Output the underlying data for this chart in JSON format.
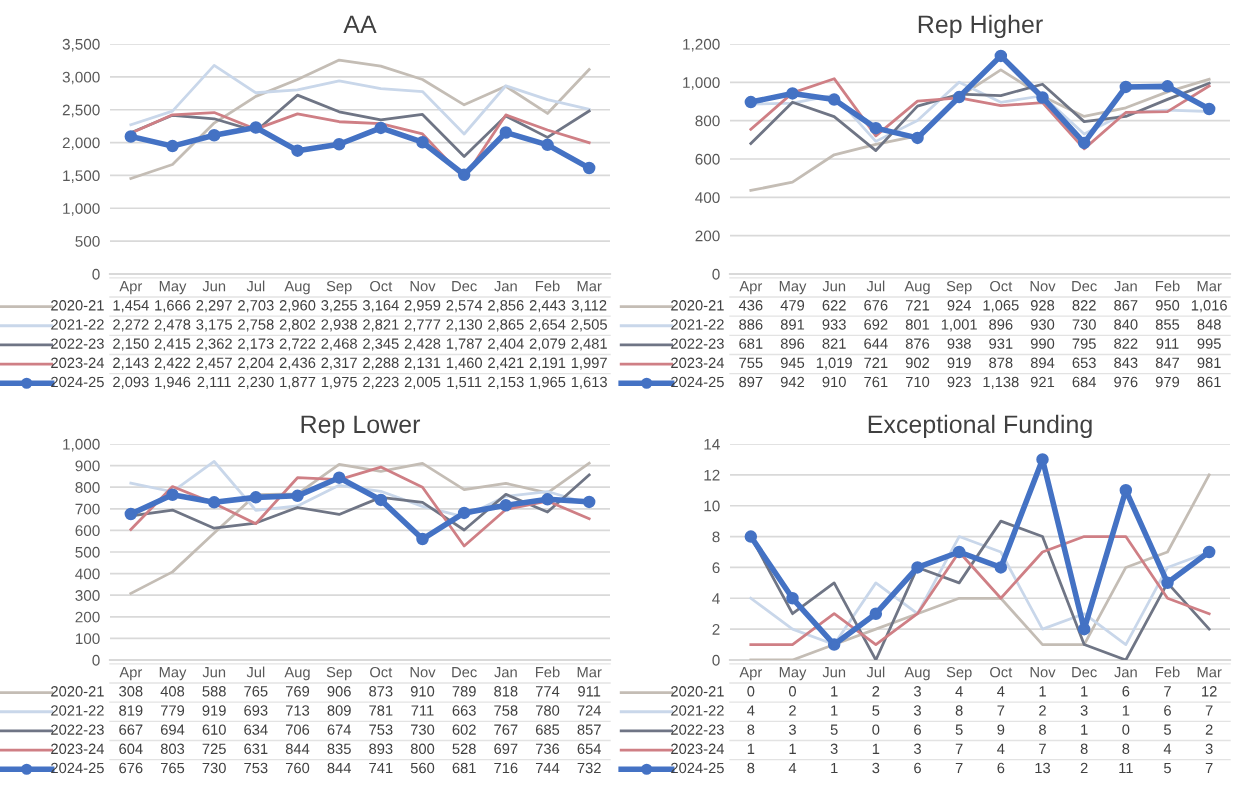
{
  "chart_data": [
    {
      "type": "line",
      "title": "AA",
      "categories": [
        "Apr",
        "May",
        "Jun",
        "Jul",
        "Aug",
        "Sep",
        "Oct",
        "Nov",
        "Dec",
        "Jan",
        "Feb",
        "Mar"
      ],
      "ylim": [
        0,
        3500
      ],
      "yticks": [
        0,
        500,
        {
          "value": 1000,
          "label": "1,000"
        },
        {
          "value": 1500,
          "label": "1,500"
        },
        {
          "value": 2000,
          "label": "2,000"
        },
        {
          "value": 2500,
          "label": "2,500"
        },
        {
          "value": 3000,
          "label": "3,000"
        },
        {
          "value": 3500,
          "label": "3,500"
        }
      ],
      "grid": "y",
      "legend": "bottom",
      "series": [
        {
          "name": "2020-21",
          "color": "#c4bdb5",
          "marker": "none",
          "values": [
            1454,
            1666,
            2297,
            2703,
            2960,
            3255,
            3164,
            2959,
            2574,
            2856,
            2443,
            3112
          ],
          "value_labels": [
            "1,454",
            "1,666",
            "2,297",
            "2,703",
            "2,960",
            "3,255",
            "3,164",
            "2,959",
            "2,574",
            "2,856",
            "2,443",
            "3,112"
          ]
        },
        {
          "name": "2021-22",
          "color": "#c9d7ea",
          "marker": "none",
          "values": [
            2272,
            2478,
            3175,
            2758,
            2802,
            2938,
            2821,
            2777,
            2130,
            2865,
            2654,
            2505
          ],
          "value_labels": [
            "2,272",
            "2,478",
            "3,175",
            "2,758",
            "2,802",
            "2,938",
            "2,821",
            "2,777",
            "2,130",
            "2,865",
            "2,654",
            "2,505"
          ]
        },
        {
          "name": "2022-23",
          "color": "#6f7585",
          "marker": "none",
          "values": [
            2150,
            2415,
            2362,
            2173,
            2722,
            2468,
            2345,
            2428,
            1787,
            2404,
            2079,
            2481
          ],
          "value_labels": [
            "2,150",
            "2,415",
            "2,362",
            "2,173",
            "2,722",
            "2,468",
            "2,345",
            "2,428",
            "1,787",
            "2,404",
            "2,079",
            "2,481"
          ]
        },
        {
          "name": "2023-24",
          "color": "#cf7f85",
          "marker": "none",
          "values": [
            2143,
            2422,
            2457,
            2204,
            2436,
            2317,
            2288,
            2131,
            1460,
            2421,
            2191,
            1997
          ],
          "value_labels": [
            "2,143",
            "2,422",
            "2,457",
            "2,204",
            "2,436",
            "2,317",
            "2,288",
            "2,131",
            "1,460",
            "2,421",
            "2,191",
            "1,997"
          ]
        },
        {
          "name": "2024-25",
          "color": "#4472c4",
          "marker": "circle",
          "values": [
            2093,
            1946,
            2111,
            2230,
            1877,
            1975,
            2223,
            2005,
            1511,
            2153,
            1965,
            1613
          ],
          "value_labels": [
            "2,093",
            "1,946",
            "2,111",
            "2,230",
            "1,877",
            "1,975",
            "2,223",
            "2,005",
            "1,511",
            "2,153",
            "1,965",
            "1,613"
          ]
        }
      ]
    },
    {
      "type": "line",
      "title": "Rep Higher",
      "categories": [
        "Apr",
        "May",
        "Jun",
        "Jul",
        "Aug",
        "Sep",
        "Oct",
        "Nov",
        "Dec",
        "Jan",
        "Feb",
        "Mar"
      ],
      "ylim": [
        0,
        1200
      ],
      "yticks": [
        0,
        200,
        400,
        600,
        800,
        {
          "value": 1000,
          "label": "1,000"
        },
        {
          "value": 1200,
          "label": "1,200"
        }
      ],
      "grid": "y",
      "legend": "bottom",
      "series": [
        {
          "name": "2020-21",
          "color": "#c4bdb5",
          "marker": "none",
          "values": [
            436,
            479,
            622,
            676,
            721,
            924,
            1065,
            928,
            822,
            867,
            950,
            1016
          ],
          "value_labels": [
            "436",
            "479",
            "622",
            "676",
            "721",
            "924",
            "1,065",
            "928",
            "822",
            "867",
            "950",
            "1,016"
          ]
        },
        {
          "name": "2021-22",
          "color": "#c9d7ea",
          "marker": "none",
          "values": [
            886,
            891,
            933,
            692,
            801,
            1001,
            896,
            930,
            730,
            840,
            855,
            848
          ],
          "value_labels": [
            "886",
            "891",
            "933",
            "692",
            "801",
            "1,001",
            "896",
            "930",
            "730",
            "840",
            "855",
            "848"
          ]
        },
        {
          "name": "2022-23",
          "color": "#6f7585",
          "marker": "none",
          "values": [
            681,
            896,
            821,
            644,
            876,
            938,
            931,
            990,
            795,
            822,
            911,
            995
          ],
          "value_labels": [
            "681",
            "896",
            "821",
            "644",
            "876",
            "938",
            "931",
            "990",
            "795",
            "822",
            "911",
            "995"
          ]
        },
        {
          "name": "2023-24",
          "color": "#cf7f85",
          "marker": "none",
          "values": [
            755,
            945,
            1019,
            721,
            902,
            919,
            878,
            894,
            653,
            843,
            847,
            981
          ],
          "value_labels": [
            "755",
            "945",
            "1,019",
            "721",
            "902",
            "919",
            "878",
            "894",
            "653",
            "843",
            "847",
            "981"
          ]
        },
        {
          "name": "2024-25",
          "color": "#4472c4",
          "marker": "circle",
          "values": [
            897,
            942,
            910,
            761,
            710,
            923,
            1138,
            921,
            684,
            976,
            979,
            861
          ],
          "value_labels": [
            "897",
            "942",
            "910",
            "761",
            "710",
            "923",
            "1,138",
            "921",
            "684",
            "976",
            "979",
            "861"
          ]
        }
      ]
    },
    {
      "type": "line",
      "title": "Rep Lower",
      "categories": [
        "Apr",
        "May",
        "Jun",
        "Jul",
        "Aug",
        "Sep",
        "Oct",
        "Nov",
        "Dec",
        "Jan",
        "Feb",
        "Mar"
      ],
      "ylim": [
        0,
        1000
      ],
      "yticks": [
        0,
        100,
        200,
        300,
        400,
        500,
        600,
        700,
        800,
        900,
        {
          "value": 1000,
          "label": "1,000"
        }
      ],
      "grid": "y",
      "data_labels": true,
      "legend": "bottom",
      "series": [
        {
          "name": "2020-21",
          "color": "#c4bdb5",
          "marker": "none",
          "values": [
            308,
            408,
            588,
            765,
            769,
            906,
            873,
            910,
            789,
            818,
            774,
            911
          ]
        },
        {
          "name": "2021-22",
          "color": "#c9d7ea",
          "marker": "none",
          "values": [
            819,
            779,
            919,
            693,
            713,
            809,
            781,
            711,
            663,
            758,
            780,
            724
          ]
        },
        {
          "name": "2022-23",
          "color": "#6f7585",
          "marker": "none",
          "values": [
            667,
            694,
            610,
            634,
            706,
            674,
            753,
            730,
            602,
            767,
            685,
            857
          ]
        },
        {
          "name": "2023-24",
          "color": "#cf7f85",
          "marker": "none",
          "values": [
            604,
            803,
            725,
            631,
            844,
            835,
            893,
            800,
            528,
            697,
            736,
            654
          ]
        },
        {
          "name": "2024-25",
          "color": "#4472c4",
          "marker": "circle",
          "values": [
            676,
            765,
            730,
            753,
            760,
            844,
            741,
            560,
            681,
            716,
            744,
            732
          ]
        }
      ]
    },
    {
      "type": "line",
      "title": "Exceptional Funding",
      "categories": [
        "Apr",
        "May",
        "Jun",
        "Jul",
        "Aug",
        "Sep",
        "Oct",
        "Nov",
        "Dec",
        "Jan",
        "Feb",
        "Mar"
      ],
      "ylim": [
        0,
        14
      ],
      "yticks": [
        0,
        2,
        4,
        6,
        8,
        10,
        12,
        14
      ],
      "grid": "y",
      "data_labels": true,
      "legend": "bottom",
      "series": [
        {
          "name": "2020-21",
          "color": "#c4bdb5",
          "marker": "none",
          "values": [
            0,
            0,
            1,
            2,
            3,
            4,
            4,
            1,
            1,
            6,
            7,
            12
          ]
        },
        {
          "name": "2021-22",
          "color": "#c9d7ea",
          "marker": "none",
          "values": [
            4,
            2,
            1,
            5,
            3,
            8,
            7,
            2,
            3,
            1,
            6,
            7
          ]
        },
        {
          "name": "2022-23",
          "color": "#6f7585",
          "marker": "none",
          "values": [
            8,
            3,
            5,
            0,
            6,
            5,
            9,
            8,
            1,
            0,
            5,
            2
          ]
        },
        {
          "name": "2023-24",
          "color": "#cf7f85",
          "marker": "none",
          "values": [
            1,
            1,
            3,
            1,
            3,
            7,
            4,
            7,
            8,
            8,
            4,
            3
          ]
        },
        {
          "name": "2024-25",
          "color": "#4472c4",
          "marker": "circle",
          "values": [
            8,
            4,
            1,
            3,
            6,
            7,
            6,
            13,
            2,
            11,
            5,
            7
          ]
        }
      ]
    }
  ]
}
